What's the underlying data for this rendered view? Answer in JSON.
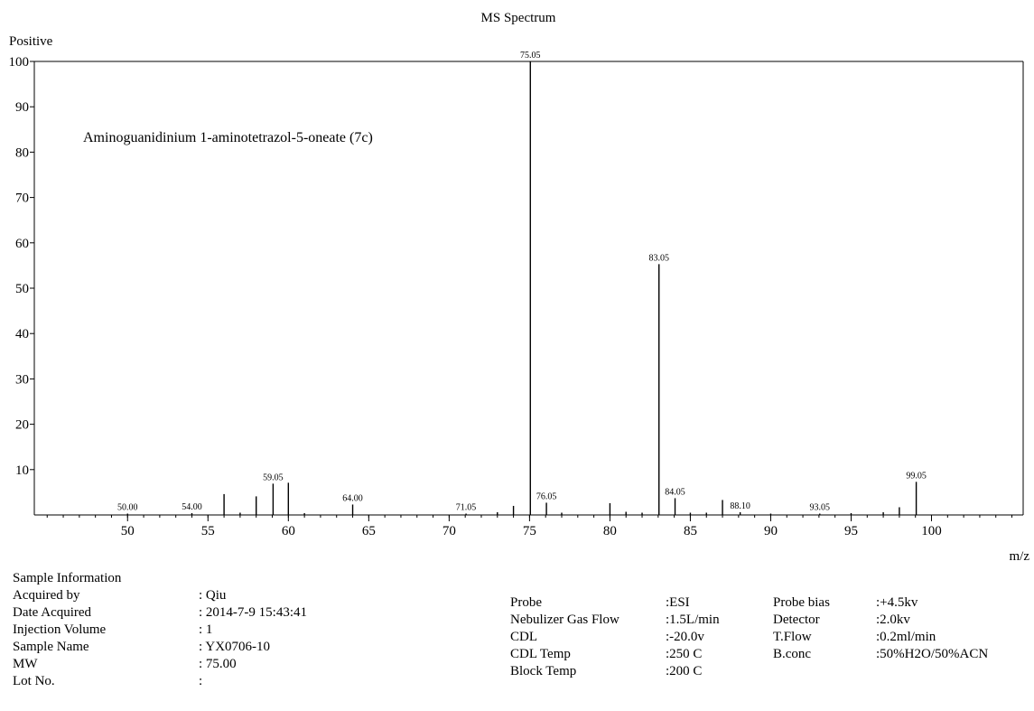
{
  "chart_data": {
    "type": "bar",
    "title": "MS Spectrum",
    "mode_label": "Positive",
    "annotation": "Aminoguanidinium 1-aminotetrazol-5-oneate (7c)",
    "xlabel": "m/z",
    "ylabel": "",
    "xlim": [
      44.2,
      105.7
    ],
    "ylim": [
      0,
      100
    ],
    "x_ticks": [
      50,
      55,
      60,
      65,
      70,
      75,
      80,
      85,
      90,
      95,
      100
    ],
    "x_tick_labels": [
      "50",
      "55",
      "60",
      "65",
      "70",
      "75",
      "80",
      "85",
      "90",
      "95",
      "100"
    ],
    "y_ticks": [
      10,
      20,
      30,
      40,
      50,
      60,
      70,
      80,
      90,
      100
    ],
    "y_tick_labels": [
      "10",
      "20",
      "30",
      "40",
      "50",
      "60",
      "70",
      "80",
      "90",
      "100"
    ],
    "grid": false,
    "peaks": [
      {
        "x": 50.0,
        "y": 0.3,
        "label": "50.00"
      },
      {
        "x": 54.0,
        "y": 0.4,
        "label": "54.00"
      },
      {
        "x": 56.0,
        "y": 4.6
      },
      {
        "x": 57.0,
        "y": 0.5
      },
      {
        "x": 58.0,
        "y": 4.1
      },
      {
        "x": 59.05,
        "y": 6.9,
        "label": "59.05"
      },
      {
        "x": 60.0,
        "y": 7.1
      },
      {
        "x": 61.0,
        "y": 0.4
      },
      {
        "x": 64.0,
        "y": 2.3,
        "label": "64.00"
      },
      {
        "x": 71.05,
        "y": 0.3,
        "label": "71.05"
      },
      {
        "x": 73.0,
        "y": 0.6
      },
      {
        "x": 74.0,
        "y": 2.0
      },
      {
        "x": 75.05,
        "y": 100,
        "label": "75.05"
      },
      {
        "x": 76.05,
        "y": 2.7,
        "label": "76.05"
      },
      {
        "x": 77.0,
        "y": 0.5
      },
      {
        "x": 80.0,
        "y": 2.6
      },
      {
        "x": 81.0,
        "y": 0.7
      },
      {
        "x": 82.0,
        "y": 0.5
      },
      {
        "x": 83.05,
        "y": 55.3,
        "label": "83.05"
      },
      {
        "x": 84.05,
        "y": 3.7,
        "label": "84.05"
      },
      {
        "x": 85.0,
        "y": 0.5
      },
      {
        "x": 86.0,
        "y": 0.5
      },
      {
        "x": 87.0,
        "y": 3.3
      },
      {
        "x": 88.1,
        "y": 0.6,
        "label": "88.10"
      },
      {
        "x": 90.0,
        "y": 0.3
      },
      {
        "x": 93.05,
        "y": 0.3,
        "label": "93.05"
      },
      {
        "x": 95.0,
        "y": 0.4
      },
      {
        "x": 97.0,
        "y": 0.6
      },
      {
        "x": 98.0,
        "y": 1.7
      },
      {
        "x": 99.05,
        "y": 7.3,
        "label": "99.05"
      }
    ]
  },
  "sample_info": {
    "heading": "Sample Information",
    "labels": [
      "Acquired by",
      "Date Acquired",
      "Injection Volume",
      "Sample Name",
      "MW",
      "Lot No."
    ],
    "values": [
      ": Qiu",
      ": 2014-7-9 15:43:41",
      ": 1",
      ": YX0706-10",
      ": 75.00",
      ":"
    ]
  },
  "instrument": {
    "labels": [
      "Probe",
      "Nebulizer Gas Flow",
      "CDL",
      "CDL Temp",
      "Block Temp"
    ],
    "values": [
      ":ESI",
      ":1.5L/min",
      ":-20.0v",
      ":250 C",
      ":200 C"
    ]
  },
  "instrument2": {
    "labels": [
      "Probe bias",
      "Detector",
      "T.Flow",
      "B.conc"
    ],
    "values": [
      ":+4.5kv",
      ":2.0kv",
      ":0.2ml/min",
      ":50%H2O/50%ACN"
    ]
  }
}
